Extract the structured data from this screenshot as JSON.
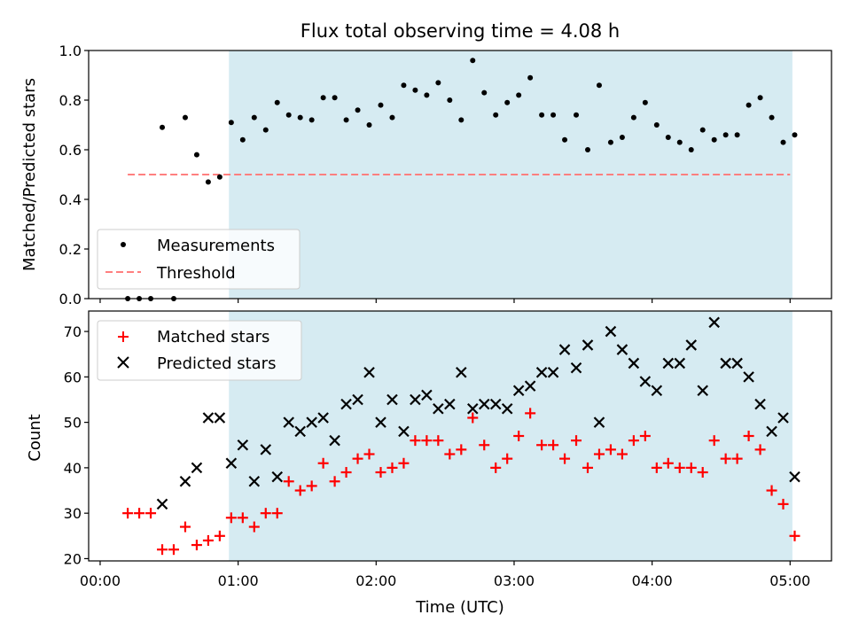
{
  "chart_data": [
    {
      "type": "scatter",
      "title": "Flux total observing time = 4.08 h",
      "xlabel": "",
      "ylabel": "Matched/Predicted stars",
      "xlim": [
        "23:55",
        "05:18"
      ],
      "ylim": [
        0,
        1.0
      ],
      "yticks": [
        "0.0",
        "0.2",
        "0.4",
        "0.6",
        "0.8",
        "1.0"
      ],
      "shaded_span": [
        "00:56",
        "05:01"
      ],
      "shade_color": "#add8e6",
      "threshold": {
        "name": "Threshold",
        "value": 0.5,
        "x_start": "00:12",
        "x_end": "05:00",
        "color": "#ff7f7f"
      },
      "series": [
        {
          "name": "Measurements",
          "marker": "dot",
          "color": "#000000",
          "x": [
            "00:12",
            "00:17",
            "00:22",
            "00:27",
            "00:32",
            "00:37",
            "00:42",
            "00:47",
            "00:52",
            "00:57",
            "01:02",
            "01:07",
            "01:12",
            "01:17",
            "01:22",
            "01:27",
            "01:32",
            "01:37",
            "01:42",
            "01:47",
            "01:52",
            "01:57",
            "02:02",
            "02:07",
            "02:12",
            "02:17",
            "02:22",
            "02:27",
            "02:32",
            "02:37",
            "02:42",
            "02:47",
            "02:52",
            "02:57",
            "03:02",
            "03:07",
            "03:12",
            "03:17",
            "03:22",
            "03:27",
            "03:32",
            "03:37",
            "03:42",
            "03:47",
            "03:52",
            "03:57",
            "04:02",
            "04:07",
            "04:12",
            "04:17",
            "04:22",
            "04:27",
            "04:32",
            "04:37",
            "04:42",
            "04:47",
            "04:52",
            "04:57",
            "05:02"
          ],
          "y": [
            0.0,
            0.0,
            0.0,
            0.69,
            0.0,
            0.73,
            0.58,
            0.47,
            0.49,
            0.71,
            0.64,
            0.73,
            0.68,
            0.79,
            0.74,
            0.73,
            0.72,
            0.81,
            0.81,
            0.72,
            0.76,
            0.7,
            0.78,
            0.73,
            0.86,
            0.84,
            0.82,
            0.87,
            0.8,
            0.72,
            0.96,
            0.83,
            0.74,
            0.79,
            0.82,
            0.89,
            0.74,
            0.74,
            0.64,
            0.74,
            0.6,
            0.86,
            0.63,
            0.65,
            0.73,
            0.79,
            0.7,
            0.65,
            0.63,
            0.6,
            0.68,
            0.64,
            0.66,
            0.66,
            0.78,
            0.81,
            0.73,
            0.63,
            0.66
          ]
        }
      ],
      "legend": {
        "placement": "lower-left"
      }
    },
    {
      "type": "scatter",
      "title": "",
      "xlabel": "Time (UTC)",
      "ylabel": "Count",
      "xlim": [
        "23:55",
        "05:18"
      ],
      "ylim": [
        19.5,
        74.5
      ],
      "yticks": [
        "20",
        "30",
        "40",
        "50",
        "60",
        "70"
      ],
      "xticks": [
        "00:00",
        "01:00",
        "02:00",
        "03:00",
        "04:00",
        "05:00"
      ],
      "shaded_span": [
        "00:56",
        "05:01"
      ],
      "shade_color": "#add8e6",
      "series": [
        {
          "name": "Matched stars",
          "marker": "plus",
          "color": "#ff0000",
          "x": [
            "00:12",
            "00:17",
            "00:22",
            "00:27",
            "00:32",
            "00:37",
            "00:42",
            "00:47",
            "00:52",
            "00:57",
            "01:02",
            "01:07",
            "01:12",
            "01:17",
            "01:22",
            "01:27",
            "01:32",
            "01:37",
            "01:42",
            "01:47",
            "01:52",
            "01:57",
            "02:02",
            "02:07",
            "02:12",
            "02:17",
            "02:22",
            "02:27",
            "02:32",
            "02:37",
            "02:42",
            "02:47",
            "02:52",
            "02:57",
            "03:02",
            "03:07",
            "03:12",
            "03:17",
            "03:22",
            "03:27",
            "03:32",
            "03:37",
            "03:42",
            "03:47",
            "03:52",
            "03:57",
            "04:02",
            "04:07",
            "04:12",
            "04:17",
            "04:22",
            "04:27",
            "04:32",
            "04:37",
            "04:42",
            "04:47",
            "04:52",
            "04:57",
            "05:02"
          ],
          "y": [
            30,
            30,
            30,
            22,
            22,
            27,
            23,
            24,
            25,
            29,
            29,
            27,
            30,
            30,
            37,
            35,
            36,
            41,
            37,
            39,
            42,
            43,
            39,
            40,
            41,
            46,
            46,
            46,
            43,
            44,
            51,
            45,
            40,
            42,
            47,
            52,
            45,
            45,
            42,
            46,
            40,
            43,
            44,
            43,
            46,
            47,
            40,
            41,
            40,
            40,
            39,
            46,
            42,
            42,
            47,
            44,
            35,
            32,
            25
          ]
        },
        {
          "name": "Predicted stars",
          "marker": "x",
          "color": "#000000",
          "x": [
            "00:27",
            "00:37",
            "00:42",
            "00:47",
            "00:52",
            "00:57",
            "01:02",
            "01:07",
            "01:12",
            "01:17",
            "01:22",
            "01:27",
            "01:32",
            "01:37",
            "01:42",
            "01:47",
            "01:52",
            "01:57",
            "02:02",
            "02:07",
            "02:12",
            "02:17",
            "02:22",
            "02:27",
            "02:32",
            "02:37",
            "02:42",
            "02:47",
            "02:52",
            "02:57",
            "03:02",
            "03:07",
            "03:12",
            "03:17",
            "03:22",
            "03:27",
            "03:32",
            "03:37",
            "03:42",
            "03:47",
            "03:52",
            "03:57",
            "04:02",
            "04:07",
            "04:12",
            "04:17",
            "04:22",
            "04:27",
            "04:32",
            "04:37",
            "04:42",
            "04:47",
            "04:52",
            "04:57",
            "05:02"
          ],
          "y": [
            32,
            37,
            40,
            51,
            51,
            41,
            45,
            37,
            44,
            38,
            50,
            48,
            50,
            51,
            46,
            54,
            55,
            61,
            50,
            55,
            48,
            55,
            56,
            53,
            54,
            61,
            53,
            54,
            54,
            53,
            57,
            58,
            61,
            61,
            66,
            62,
            67,
            50,
            70,
            66,
            63,
            59,
            57,
            63,
            63,
            67,
            57,
            72,
            63,
            63,
            60,
            54,
            48,
            51,
            38
          ]
        }
      ],
      "legend": {
        "placement": "upper-left"
      }
    }
  ]
}
